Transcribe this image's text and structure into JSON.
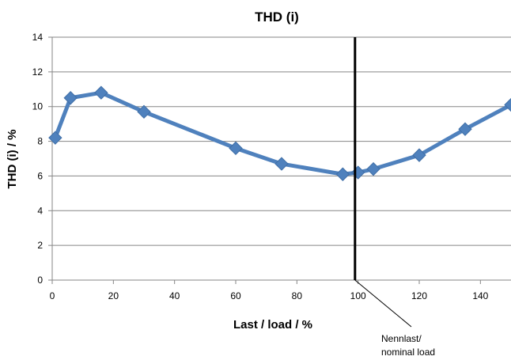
{
  "chart_data": {
    "type": "line",
    "title": "THD (i)",
    "xlabel": "Last / load / %",
    "ylabel": "THD (i) / %",
    "xlim": [
      0,
      150
    ],
    "ylim": [
      0,
      14
    ],
    "xticks": [
      0,
      20,
      40,
      60,
      80,
      100,
      120,
      140
    ],
    "yticks": [
      0,
      2,
      4,
      6,
      8,
      10,
      12,
      14
    ],
    "grid": true,
    "legend": "none",
    "series": [
      {
        "color": "#4f81bd",
        "marker": "diamond",
        "x": [
          1,
          6,
          16,
          30,
          60,
          75,
          95,
          100,
          105,
          120,
          135,
          150
        ],
        "y": [
          8.2,
          10.5,
          10.8,
          9.7,
          7.6,
          6.7,
          6.1,
          6.2,
          6.4,
          7.2,
          8.7,
          10.1
        ]
      }
    ],
    "annotations": [
      {
        "type": "vertical-line",
        "x": 99,
        "color": "#000000",
        "label_lines": [
          "Nennlast/",
          "nominal load"
        ]
      }
    ]
  }
}
